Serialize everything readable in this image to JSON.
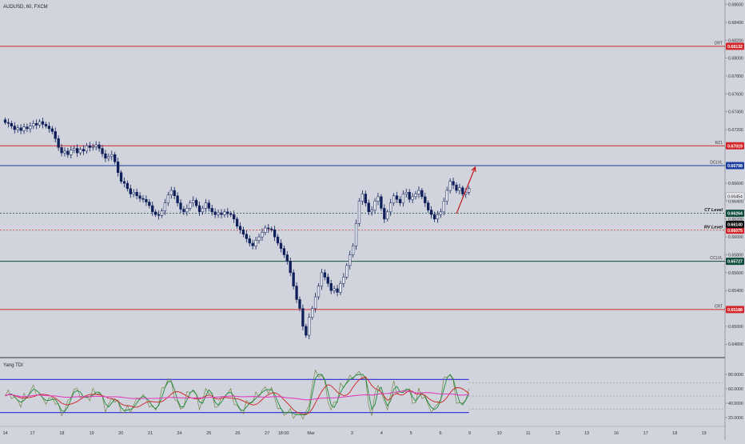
{
  "header": {
    "symbol": "AUDUSD, 60, FXCM"
  },
  "indicator": {
    "name": "Yang TDI"
  },
  "colors": {
    "background": "#d1d4dc",
    "candle": "#0f1f5a",
    "candle_light": "#eef0f5",
    "red_line": "#d3262a",
    "blue_line": "#1d3fa0",
    "green_badge": "#0e4b3b",
    "dark_badge": "#111111",
    "arrow": "#c01818",
    "tdi_band": "#2b2bd6",
    "tdi_pink": "#e040c0",
    "tdi_green": "#1a8a3a",
    "tdi_red": "#cc2222",
    "tdi_olive": "#6a7a30"
  },
  "chart_data": {
    "type": "candlestick",
    "symbol": "AUDUSD",
    "timeframe": "60",
    "price_axis": {
      "range": [
        0.6465,
        0.6865
      ],
      "ticks": [
        "0.68600",
        "0.68400",
        "0.68200",
        "0.68000",
        "0.67800",
        "0.67600",
        "0.67400",
        "0.67200",
        "0.67000",
        "0.66800",
        "0.66600",
        "0.66400",
        "0.66200",
        "0.66000",
        "0.65800",
        "0.65600",
        "0.65400",
        "0.65200",
        "0.65000",
        "0.64800"
      ]
    },
    "time_axis": {
      "ticks": [
        {
          "label": "14",
          "i": 0
        },
        {
          "label": "17",
          "i": 8.7
        },
        {
          "label": "18",
          "i": 18.1
        },
        {
          "label": "19",
          "i": 27.6
        },
        {
          "label": "20",
          "i": 36.9
        },
        {
          "label": "21",
          "i": 46.3
        },
        {
          "label": "24",
          "i": 55.6
        },
        {
          "label": "25",
          "i": 65
        },
        {
          "label": "26",
          "i": 74.2
        },
        {
          "label": "27",
          "i": 83.6
        },
        {
          "label": "18:00",
          "i": 88.8
        },
        {
          "label": "Mar",
          "i": 97.6
        },
        {
          "label": "3",
          "i": 110.7
        },
        {
          "label": "4",
          "i": 120.1
        },
        {
          "label": "5",
          "i": 129.5
        },
        {
          "label": "6",
          "i": 138.9
        },
        {
          "label": "9",
          "i": 148.2
        },
        {
          "label": "10",
          "i": 157.7
        },
        {
          "label": "11",
          "i": 166.9
        },
        {
          "label": "12",
          "i": 176.3
        },
        {
          "label": "13",
          "i": 185.6
        },
        {
          "label": "16",
          "i": 195
        },
        {
          "label": "17",
          "i": 204.4
        },
        {
          "label": "18",
          "i": 213.7
        },
        {
          "label": "19",
          "i": 223
        }
      ]
    },
    "closes": [
      0.6728,
      0.6727,
      0.6724,
      0.672,
      0.6722,
      0.6719,
      0.6723,
      0.6721,
      0.6724,
      0.6727,
      0.6725,
      0.6729,
      0.6726,
      0.6724,
      0.6721,
      0.6718,
      0.671,
      0.67,
      0.6694,
      0.6696,
      0.6692,
      0.6697,
      0.6699,
      0.6694,
      0.6698,
      0.6696,
      0.6702,
      0.67,
      0.6701,
      0.6703,
      0.6699,
      0.6693,
      0.6688,
      0.669,
      0.6692,
      0.6684,
      0.6672,
      0.6662,
      0.666,
      0.6654,
      0.6648,
      0.665,
      0.6646,
      0.6643,
      0.6642,
      0.6639,
      0.6635,
      0.6628,
      0.6625,
      0.6624,
      0.6629,
      0.6638,
      0.6647,
      0.6652,
      0.6646,
      0.6638,
      0.6631,
      0.6628,
      0.6632,
      0.6638,
      0.6641,
      0.6635,
      0.6628,
      0.6632,
      0.6638,
      0.6632,
      0.6628,
      0.6625,
      0.6627,
      0.6625,
      0.6628,
      0.6626,
      0.6625,
      0.662,
      0.6612,
      0.6608,
      0.6603,
      0.6598,
      0.6593,
      0.659,
      0.6596,
      0.66,
      0.6605,
      0.661,
      0.6609,
      0.6608,
      0.66,
      0.6593,
      0.6587,
      0.658,
      0.6573,
      0.656,
      0.6545,
      0.653,
      0.652,
      0.65,
      0.649,
      0.651,
      0.652,
      0.6533,
      0.6545,
      0.656,
      0.6555,
      0.6548,
      0.654,
      0.6542,
      0.6538,
      0.6548,
      0.6555,
      0.6568,
      0.658,
      0.659,
      0.6615,
      0.664,
      0.6648,
      0.6638,
      0.6628,
      0.663,
      0.664,
      0.6645,
      0.6632,
      0.662,
      0.6628,
      0.6638,
      0.6646,
      0.6642,
      0.6638,
      0.6648,
      0.665,
      0.6642,
      0.6645,
      0.6648,
      0.6652,
      0.6645,
      0.6638,
      0.663,
      0.6625,
      0.662,
      0.6625,
      0.6628,
      0.664,
      0.6652,
      0.6662,
      0.6658,
      0.6652,
      0.6655,
      0.6648,
      0.665,
      0.6654
    ],
    "levels": [
      {
        "label": "DRT",
        "price": 0.68132,
        "value": "0.68132",
        "style": "solid",
        "color": "red"
      },
      {
        "label": "RZ1",
        "price": 0.67019,
        "value": "0.67019",
        "style": "solid",
        "color": "red"
      },
      {
        "label": "DCLVL",
        "price": 0.66798,
        "value": "0.66798",
        "style": "solid",
        "color": "blue"
      },
      {
        "label": "CT Level",
        "price": 0.66264,
        "value": "0.66264",
        "style": "dotted",
        "color": "green"
      },
      {
        "label": "RV Level",
        "price": 0.66075,
        "value": "0.66075",
        "style": "dotted",
        "color": "red"
      },
      {
        "label": "CCLVL",
        "price": 0.65727,
        "value": "0.65727",
        "style": "solid",
        "color": "green"
      },
      {
        "label": "CRT",
        "price": 0.65188,
        "value": "0.65188",
        "style": "solid",
        "color": "red"
      }
    ],
    "price_badges": [
      {
        "value": "0.66454",
        "price": 0.66454,
        "style": "outline"
      },
      {
        "value": "0.66140",
        "price": 0.6614,
        "style": "dark"
      }
    ],
    "projection_arrow": {
      "from": {
        "i": 144,
        "price": 0.6626
      },
      "to": {
        "i": 150,
        "price": 0.6678
      }
    },
    "tdi": {
      "range": [
        10,
        100
      ],
      "ticks": [
        "80.0000",
        "60.0000",
        "40.0000",
        "20.0000"
      ],
      "upper_band": 73,
      "lower_band": 27,
      "dotted_levels": [
        68,
        50,
        32
      ]
    }
  }
}
